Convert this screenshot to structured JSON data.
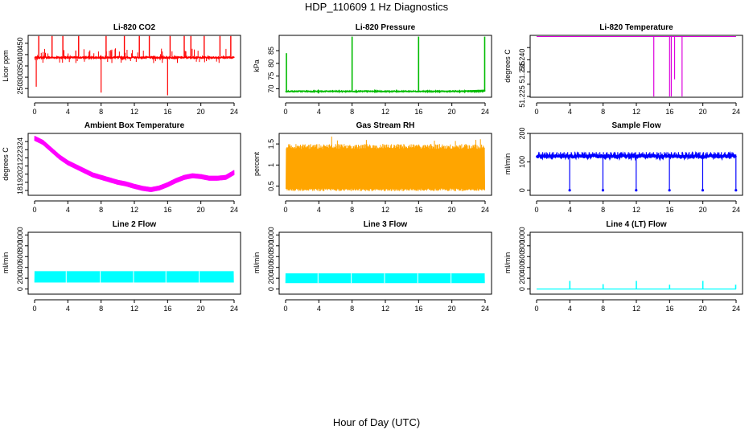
{
  "figure": {
    "title": "HDP_110609  1 Hz Diagnostics",
    "xlabel": "Hour of Day (UTC)"
  },
  "chart_data": [
    {
      "type": "line",
      "title": "Li-820 CO2",
      "ylabel": "Licor ppm",
      "xlim": [
        0,
        24
      ],
      "xticks": [
        0,
        4,
        8,
        12,
        16,
        20,
        24
      ],
      "ylim": [
        215,
        485
      ],
      "yticks": [
        250,
        300,
        350,
        400,
        450
      ],
      "color": "#ff0000",
      "pattern": "co2",
      "base": 387,
      "band": 6,
      "spikes_up": [
        0.5,
        2.1,
        3.4,
        5.3,
        8.6,
        10.8,
        12.6,
        13.8,
        16.3,
        18.0,
        18.8,
        20.4,
        22.3,
        23.6
      ],
      "spike_up_value": 482,
      "spikes_down": [
        {
          "x": 0.2,
          "y": 258
        },
        {
          "x": 8.0,
          "y": 232
        },
        {
          "x": 16.0,
          "y": 220
        }
      ]
    },
    {
      "type": "line",
      "title": "Li-820 Pressure",
      "ylabel": "kPa",
      "xlim": [
        0,
        24
      ],
      "xticks": [
        0,
        4,
        8,
        12,
        16,
        20,
        24
      ],
      "ylim": [
        67,
        91
      ],
      "yticks": [
        70,
        75,
        80,
        85
      ],
      "color": "#00bb00",
      "pattern": "pressure",
      "base": 69.0,
      "band": 0.4,
      "spikes_up": [
        {
          "x": 0.1,
          "y": 84
        },
        {
          "x": 8.0,
          "y": 90.5
        },
        {
          "x": 16.0,
          "y": 90.5
        },
        {
          "x": 23.95,
          "y": 90.5
        }
      ],
      "spikes_down": [
        {
          "x": 4.0,
          "y": 68.2
        }
      ]
    },
    {
      "type": "line",
      "title": "Li-820 Temperature",
      "ylabel": "degrees C",
      "xlim": [
        0,
        24
      ],
      "xticks": [
        0,
        4,
        8,
        12,
        16,
        20,
        24
      ],
      "ylim": [
        51.225,
        51.25
      ],
      "yticks": [
        51.225,
        51.23,
        51.235,
        51.24,
        51.245
      ],
      "ytick_labels": [
        "51.225",
        "",
        "51.235",
        "51.240",
        ""
      ],
      "color": "#dd00dd",
      "pattern": "temp",
      "base": 51.2495,
      "dips": [
        {
          "x": 14.1,
          "y": 51.225
        },
        {
          "x": 16.0,
          "y": 51.225
        },
        {
          "x": 16.2,
          "y": 51.225
        },
        {
          "x": 16.6,
          "y": 51.232
        },
        {
          "x": 17.5,
          "y": 51.225
        }
      ]
    },
    {
      "type": "line",
      "title": "Ambient Box Temperature",
      "ylabel": "degrees C",
      "xlim": [
        0,
        24
      ],
      "xticks": [
        0,
        4,
        8,
        12,
        16,
        20,
        24
      ],
      "ylim": [
        17.5,
        25.0
      ],
      "yticks": [
        18,
        19,
        20,
        21,
        22,
        23,
        24
      ],
      "color": "#ff00ff",
      "pattern": "ambient",
      "band": 0.6,
      "x": [
        0,
        1,
        2,
        3,
        4,
        5,
        6,
        7,
        8,
        9,
        10,
        11,
        12,
        13,
        14,
        15,
        16,
        17,
        18,
        19,
        20,
        21,
        22,
        23,
        24
      ],
      "y": [
        24.4,
        23.9,
        23.0,
        22.1,
        21.4,
        20.9,
        20.4,
        19.9,
        19.6,
        19.3,
        19.0,
        18.8,
        18.5,
        18.25,
        18.1,
        18.3,
        18.7,
        19.2,
        19.6,
        19.8,
        19.7,
        19.5,
        19.5,
        19.6,
        20.2
      ]
    },
    {
      "type": "line",
      "title": "Gas Stream RH",
      "ylabel": "percent",
      "xlim": [
        0,
        24
      ],
      "xticks": [
        0,
        4,
        8,
        12,
        16,
        20,
        24
      ],
      "ylim": [
        0.3,
        1.75
      ],
      "yticks": [
        0.5,
        1.0,
        1.5
      ],
      "color": "#ffa500",
      "pattern": "rh",
      "low": 0.38,
      "high": 1.5,
      "max": 1.68
    },
    {
      "type": "line",
      "title": "Sample Flow",
      "ylabel": "ml/min",
      "xlim": [
        0,
        24
      ],
      "xticks": [
        0,
        4,
        8,
        12,
        16,
        20,
        24
      ],
      "ylim": [
        -15,
        200
      ],
      "yticks": [
        0,
        100,
        200
      ],
      "color": "#0000ff",
      "pattern": "sample",
      "base": 120,
      "band": 10,
      "dips": [
        4,
        8,
        12,
        16,
        20,
        24
      ],
      "dip_value": 0
    },
    {
      "type": "line",
      "title": "Line 2 Flow",
      "ylabel": "ml/min",
      "xlim": [
        0,
        24
      ],
      "xticks": [
        0,
        4,
        8,
        12,
        16,
        20,
        24
      ],
      "ylim": [
        -80,
        1050
      ],
      "yticks": [
        0,
        200,
        400,
        600,
        800,
        1000
      ],
      "color": "#00ffff",
      "pattern": "block",
      "low": 120,
      "high": 330,
      "gaps": [
        3.8,
        7.9,
        11.9,
        15.8,
        19.8
      ]
    },
    {
      "type": "line",
      "title": "Line 3 Flow",
      "ylabel": "ml/min",
      "xlim": [
        0,
        24
      ],
      "xticks": [
        0,
        4,
        8,
        12,
        16,
        20,
        24
      ],
      "ylim": [
        -80,
        1050
      ],
      "yticks": [
        0,
        200,
        400,
        600,
        800,
        1000
      ],
      "color": "#00ffff",
      "pattern": "block",
      "low": 110,
      "high": 290,
      "gaps": [
        3.9,
        7.9,
        11.9,
        15.9,
        19.9
      ]
    },
    {
      "type": "line",
      "title": "Line 4 (LT) Flow",
      "ylabel": "ml/min",
      "xlim": [
        0,
        24
      ],
      "xticks": [
        0,
        4,
        8,
        12,
        16,
        20,
        24
      ],
      "ylim": [
        -80,
        1050
      ],
      "yticks": [
        0,
        200,
        400,
        600,
        800,
        1000
      ],
      "color": "#00ffff",
      "pattern": "baseline",
      "base": 0,
      "spikes": [
        {
          "x": 4.0,
          "y": 150
        },
        {
          "x": 8.0,
          "y": 90
        },
        {
          "x": 12.0,
          "y": 150
        },
        {
          "x": 16.0,
          "y": 80
        },
        {
          "x": 20.0,
          "y": 150
        },
        {
          "x": 23.95,
          "y": 80
        }
      ]
    }
  ]
}
